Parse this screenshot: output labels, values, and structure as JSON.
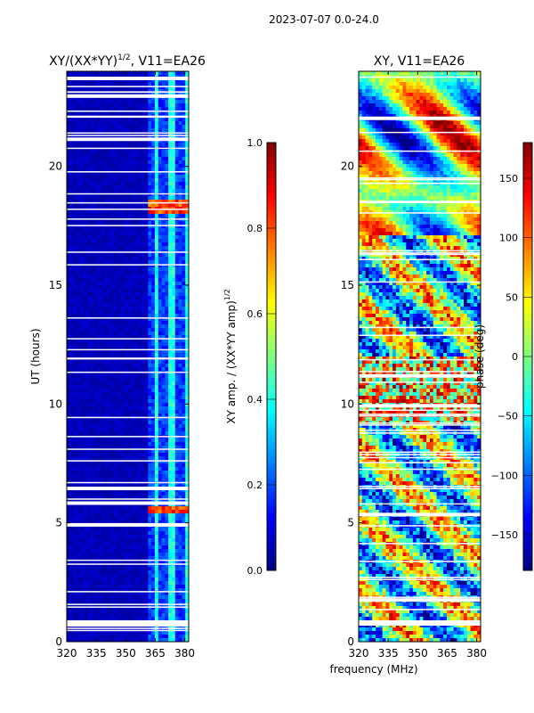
{
  "suptitle": "2023-07-07 0.0-24.0",
  "chart_data": [
    {
      "type": "heatmap",
      "title_main": "XY/(XX*YY)",
      "title_sup": "1/2",
      "title_tail": ", V11=EA26",
      "xlabel": "",
      "ylabel": "UT (hours)",
      "xlim": [
        320,
        382
      ],
      "ylim": [
        0,
        24
      ],
      "xticks": [
        "320",
        "335",
        "350",
        "365",
        "380"
      ],
      "yticks": [
        "0",
        "5",
        "10",
        "15",
        "20"
      ],
      "colormap": "jet",
      "colorbar": {
        "label_main": "XY amp. / (XX*YY amp)",
        "label_sup": "1/2",
        "range": [
          0.0,
          1.0
        ],
        "ticks": [
          "0.0",
          "0.2",
          "0.4",
          "0.6",
          "0.8",
          "1.0"
        ]
      }
    },
    {
      "type": "heatmap",
      "title_main": "XY, V11=EA26",
      "xlabel": "frequency (MHz)",
      "ylabel": "",
      "xlim": [
        320,
        382
      ],
      "ylim": [
        0,
        24
      ],
      "xticks": [
        "320",
        "335",
        "350",
        "365",
        "380"
      ],
      "yticks": [
        "0",
        "5",
        "10",
        "15",
        "20"
      ],
      "colormap": "jet",
      "colorbar": {
        "label_main": "phase (deg)",
        "range": [
          -180,
          180
        ],
        "ticks": [
          "−150",
          "−100",
          "−50",
          "0",
          "50",
          "100",
          "150"
        ]
      }
    }
  ]
}
